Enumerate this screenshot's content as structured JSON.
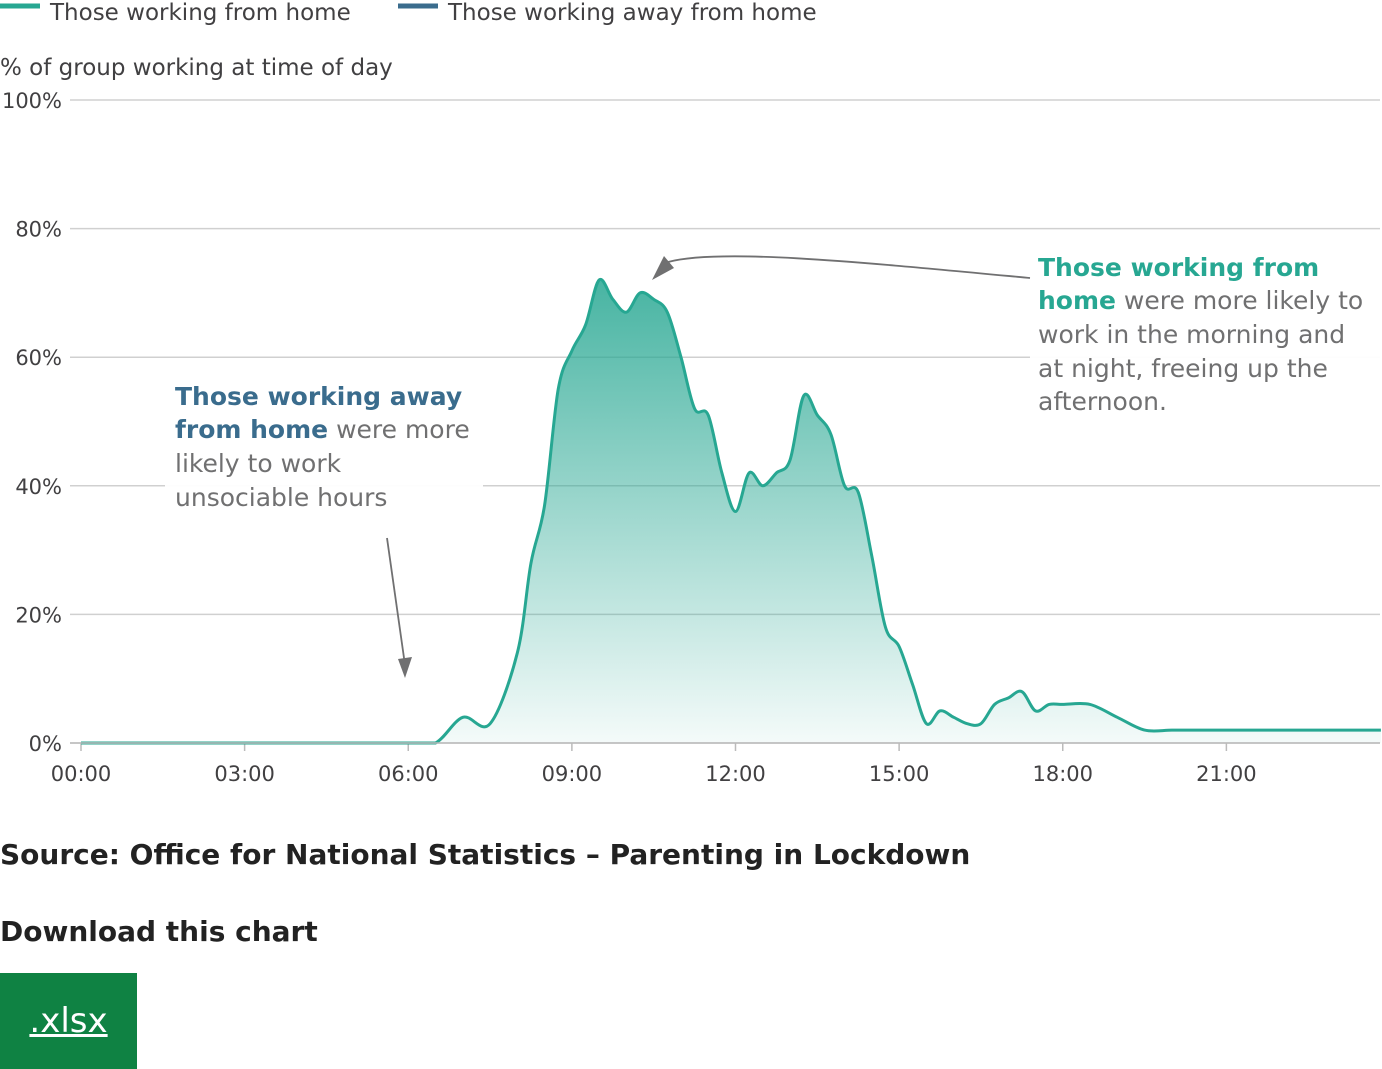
{
  "legend": [
    {
      "label": "Those working from home",
      "color": "#27a792"
    },
    {
      "label": "Those working away from home",
      "color": "#3a6c8d"
    }
  ],
  "y_axis_title": "% of group working at time of day",
  "annotations": {
    "away": {
      "bold_lines": [
        "Those working away",
        "from home"
      ],
      "rest_first": " were more",
      "rest_lines": [
        "likely to work",
        "unsociable hours"
      ]
    },
    "home": {
      "bold_lines": [
        "Those working from",
        "home"
      ],
      "rest_first": " were more likely to",
      "rest_lines": [
        "work in the morning and",
        "at night, freeing up the",
        "afternoon."
      ]
    }
  },
  "source": "Source: Office for National Statistics – Parenting in Lockdown",
  "download": {
    "title": "Download this chart",
    "button_label": ".xlsx"
  },
  "chart_data": {
    "type": "area",
    "x": [
      "00:00",
      "00:30",
      "01:00",
      "01:30",
      "02:00",
      "02:30",
      "03:00",
      "03:30",
      "04:00",
      "04:30",
      "05:00",
      "05:30",
      "06:00",
      "06:30",
      "07:00",
      "07:30",
      "08:00",
      "08:15",
      "08:30",
      "08:45",
      "09:00",
      "09:15",
      "09:30",
      "09:45",
      "10:00",
      "10:15",
      "10:30",
      "10:45",
      "11:00",
      "11:15",
      "11:30",
      "11:45",
      "12:00",
      "12:15",
      "12:30",
      "12:45",
      "13:00",
      "13:15",
      "13:30",
      "13:45",
      "14:00",
      "14:15",
      "14:30",
      "14:45",
      "15:00",
      "15:15",
      "15:30",
      "15:45",
      "16:00",
      "16:15",
      "16:30",
      "16:45",
      "17:00",
      "17:15",
      "17:30",
      "17:45",
      "18:00",
      "18:30",
      "19:00",
      "19:30",
      "20:00",
      "20:30",
      "21:00",
      "21:30",
      "22:00",
      "22:30",
      "23:00",
      "23:30",
      "23:50"
    ],
    "x_ticks": [
      "00:00",
      "03:00",
      "06:00",
      "09:00",
      "12:00",
      "15:00",
      "18:00",
      "21:00"
    ],
    "series": [
      {
        "name": "Those working from home",
        "color": "#27a792",
        "values": [
          0,
          0,
          0,
          0,
          0,
          0,
          0,
          0,
          0,
          0,
          0,
          0,
          0,
          0,
          4,
          3,
          14,
          28,
          37,
          55,
          61,
          65,
          72,
          69,
          67,
          70,
          69,
          67,
          60,
          52,
          51,
          42,
          36,
          42,
          40,
          42,
          44,
          54,
          51,
          48,
          40,
          39,
          29,
          18,
          15,
          9,
          3,
          5,
          4,
          3,
          3,
          6,
          7,
          8,
          5,
          6,
          6,
          6,
          4,
          2,
          2,
          2,
          2,
          2,
          2,
          2,
          2,
          2,
          2
        ]
      }
    ]
  }
}
